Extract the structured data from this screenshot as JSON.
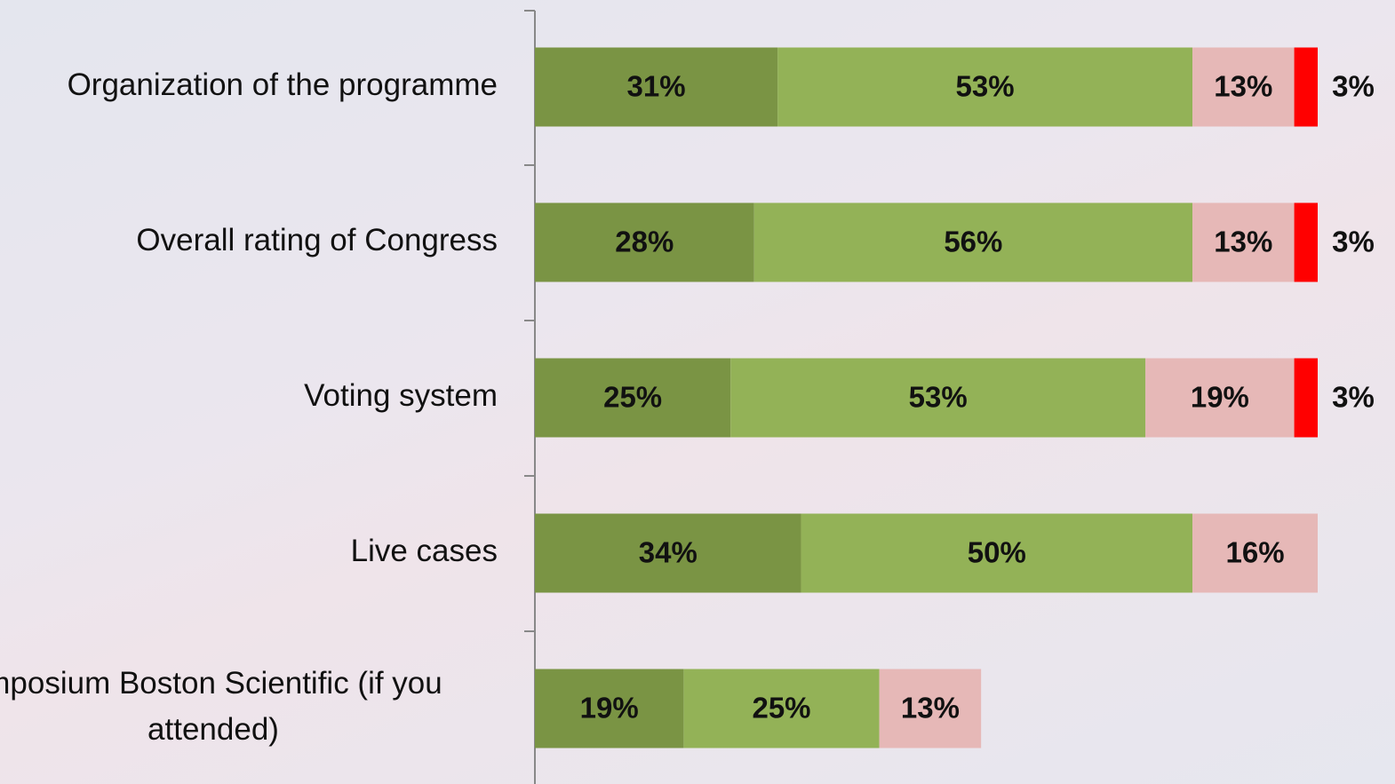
{
  "chart_data": {
    "type": "stacked-barh",
    "categories": [
      "Organization of the programme",
      "Overall rating of Congress",
      "Voting system",
      "Live cases",
      "mposium Boston Scientific (if you attended)"
    ],
    "series": [
      {
        "color": "#7a9444",
        "values": [
          31,
          28,
          25,
          34,
          19
        ],
        "value_labels": [
          "31%",
          "28%",
          "25%",
          "34%",
          "19%"
        ]
      },
      {
        "color": "#93b257",
        "values": [
          53,
          56,
          53,
          50,
          25
        ],
        "value_labels": [
          "53%",
          "56%",
          "53%",
          "50%",
          "25%"
        ]
      },
      {
        "color": "#e6b8b7",
        "values": [
          13,
          13,
          19,
          16,
          13
        ],
        "value_labels": [
          "13%",
          "13%",
          "19%",
          "16%",
          "13%"
        ]
      },
      {
        "color": "#ff0000",
        "values": [
          3,
          3,
          3,
          null,
          null
        ],
        "value_labels": [
          "3%",
          "3%",
          "3%",
          null,
          null
        ]
      }
    ],
    "xlim": [
      0,
      100
    ]
  }
}
